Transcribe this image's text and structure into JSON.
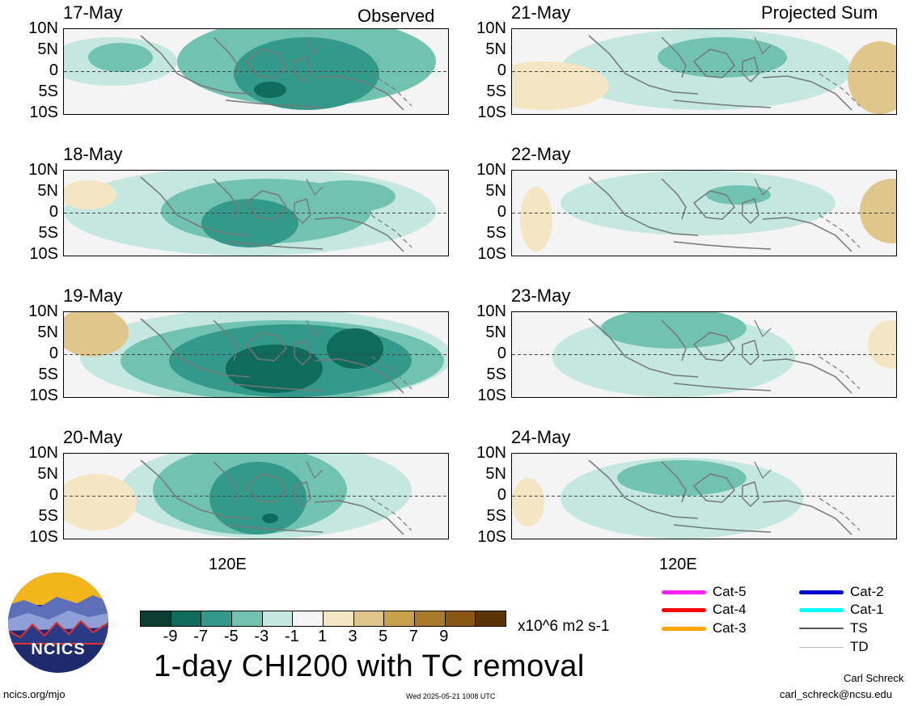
{
  "left_column": {
    "tag": "Observed",
    "panels": [
      {
        "date": "17-May"
      },
      {
        "date": "18-May"
      },
      {
        "date": "19-May"
      },
      {
        "date": "20-May"
      }
    ],
    "x_tick": "120E"
  },
  "right_column": {
    "tag": "Projected Sum",
    "panels": [
      {
        "date": "21-May"
      },
      {
        "date": "22-May"
      },
      {
        "date": "23-May"
      },
      {
        "date": "24-May"
      }
    ],
    "x_tick": "120E"
  },
  "y_ticks": [
    "10N",
    "5N",
    "0",
    "5S",
    "10S"
  ],
  "colorbar": {
    "colors": [
      "#0c3d33",
      "#0f6b5c",
      "#33998a",
      "#72c2b2",
      "#c4e8e0",
      "#f5f5f5",
      "#f5e6c3",
      "#e0c68a",
      "#c7a14e",
      "#a9792c",
      "#8a5615",
      "#5b3508"
    ],
    "ticks": [
      "-9",
      "-7",
      "-5",
      "-3",
      "-1",
      "1",
      "3",
      "5",
      "7",
      "9"
    ],
    "units": "x10^6 m2 s-1"
  },
  "title": "1-day CHI200 with TC removal",
  "legend": [
    {
      "label": "Cat-5",
      "color": "#ff22ff"
    },
    {
      "label": "Cat-4",
      "color": "#ff0000"
    },
    {
      "label": "Cat-3",
      "color": "#ffa500"
    },
    {
      "label": "Cat-2",
      "color": "#0000cc"
    },
    {
      "label": "Cat-1",
      "color": "#00ffff"
    },
    {
      "label": "TS",
      "color": "#555555"
    },
    {
      "label": "TD",
      "color": "#bbbbbb"
    }
  ],
  "footer": {
    "site": "ncics.org/mjo",
    "timestamp": "Wed 2025-05-21 1008 UTC",
    "author": "Carl Schreck",
    "email": "carl_schreck@ncsu.edu"
  },
  "logo": {
    "text": "NCICS"
  }
}
